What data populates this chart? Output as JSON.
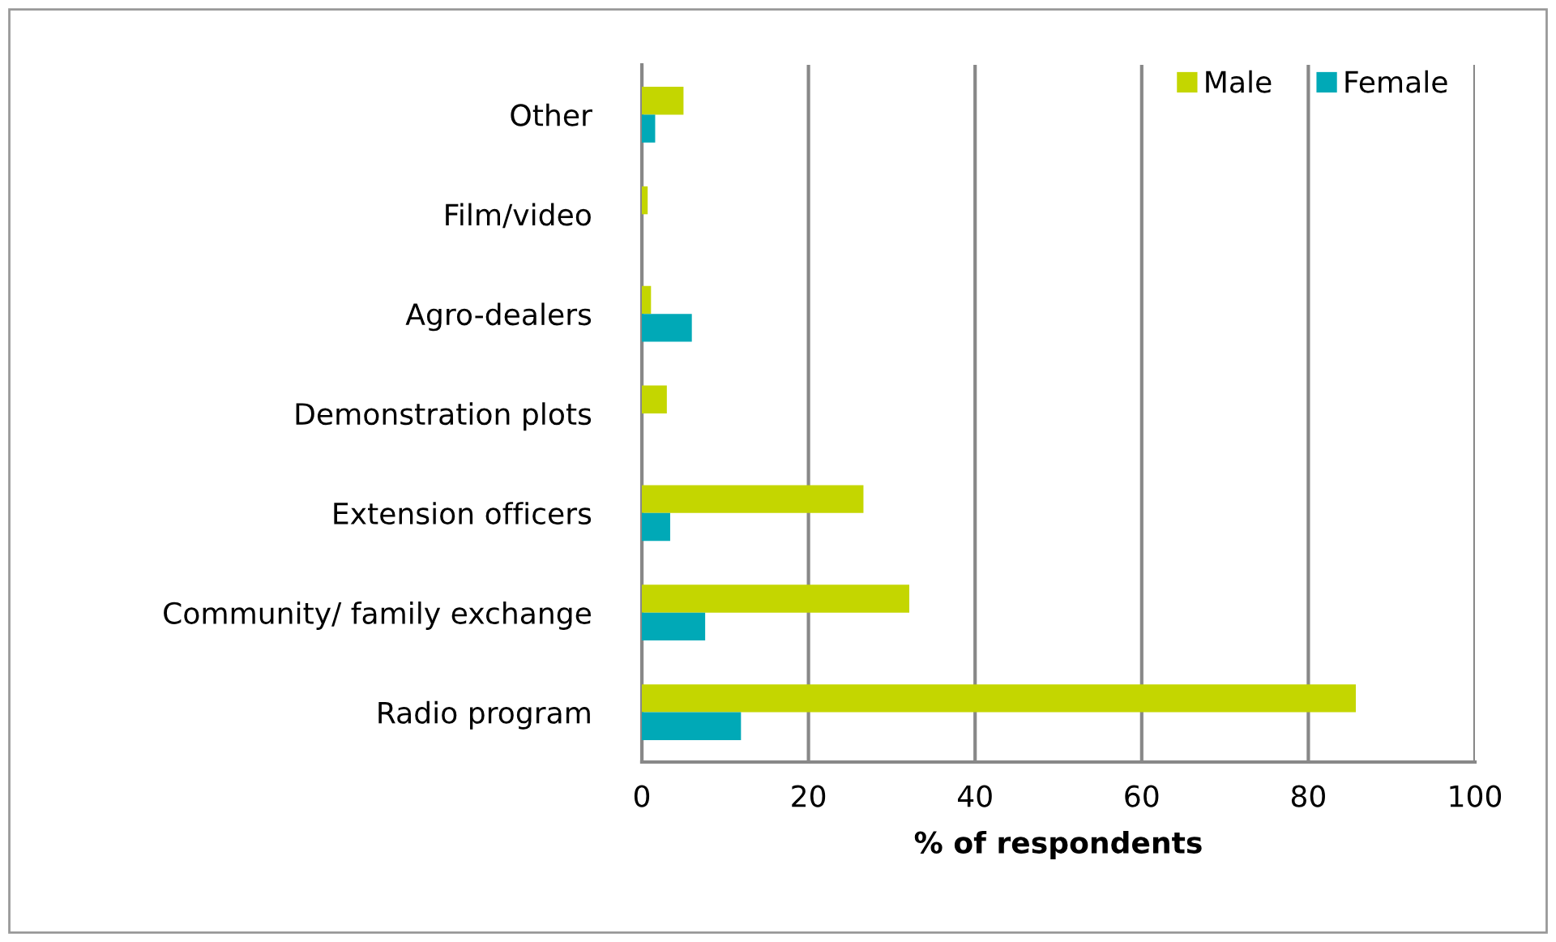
{
  "chart_data": {
    "type": "bar",
    "orientation": "horizontal",
    "xlabel": "% of respondents",
    "categories": [
      "Other",
      "Film/video",
      "Agro-dealers",
      "Demonstration plots",
      "Extension officers",
      "Community/ family exchange",
      "Radio program"
    ],
    "series": [
      {
        "name": "Male",
        "color": "#c4d600",
        "values": [
          5.0,
          0.7,
          1.1,
          3.0,
          26.6,
          32.1,
          85.7
        ]
      },
      {
        "name": "Female",
        "color": "#00a9b7",
        "values": [
          1.6,
          null,
          6.0,
          null,
          3.4,
          7.6,
          11.9
        ]
      }
    ],
    "xlim": [
      0,
      100
    ],
    "xticks": [
      0,
      20,
      40,
      60,
      80,
      100
    ],
    "grid": "x",
    "legend": "top right"
  }
}
